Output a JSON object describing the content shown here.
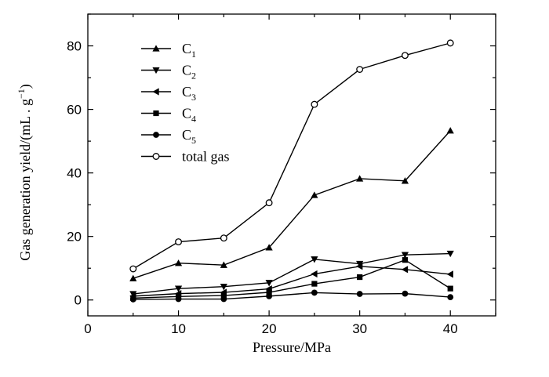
{
  "chart_data": {
    "type": "line",
    "xlabel": "Pressure/MPa",
    "ylabel": "Gas generation yield/(mL . g",
    "ylabel_sup": "−1",
    "ylabel_close": ")",
    "xlim": [
      0,
      45
    ],
    "ylim": [
      -5,
      90
    ],
    "xticks": [
      0,
      10,
      20,
      30,
      40
    ],
    "yticks": [
      0,
      20,
      40,
      60,
      80
    ],
    "x": [
      5,
      10,
      15,
      20,
      25,
      30,
      35,
      40
    ],
    "legend_position": "top-left",
    "series": [
      {
        "name": "C",
        "sub": "1",
        "marker": "triangle-up",
        "values": [
          6.8,
          11.6,
          11.0,
          16.5,
          33.0,
          38.2,
          37.5,
          53.3
        ]
      },
      {
        "name": "C",
        "sub": "2",
        "marker": "triangle-down",
        "values": [
          1.9,
          3.6,
          4.2,
          5.4,
          12.8,
          11.4,
          14.2,
          14.6
        ]
      },
      {
        "name": "C",
        "sub": "3",
        "marker": "triangle-left",
        "values": [
          1.2,
          2.0,
          2.4,
          3.5,
          8.2,
          10.6,
          9.6,
          8.1
        ]
      },
      {
        "name": "C",
        "sub": "4",
        "marker": "square",
        "values": [
          0.6,
          1.1,
          1.4,
          2.4,
          5.1,
          7.2,
          12.6,
          3.6
        ]
      },
      {
        "name": "C",
        "sub": "5",
        "marker": "circle-filled",
        "values": [
          0.2,
          0.3,
          0.3,
          1.2,
          2.3,
          1.9,
          2.0,
          0.9
        ]
      },
      {
        "name": "total gas",
        "sub": "",
        "marker": "circle-open",
        "values": [
          9.8,
          18.3,
          19.5,
          30.6,
          61.6,
          72.6,
          77.0,
          80.9
        ]
      }
    ]
  }
}
